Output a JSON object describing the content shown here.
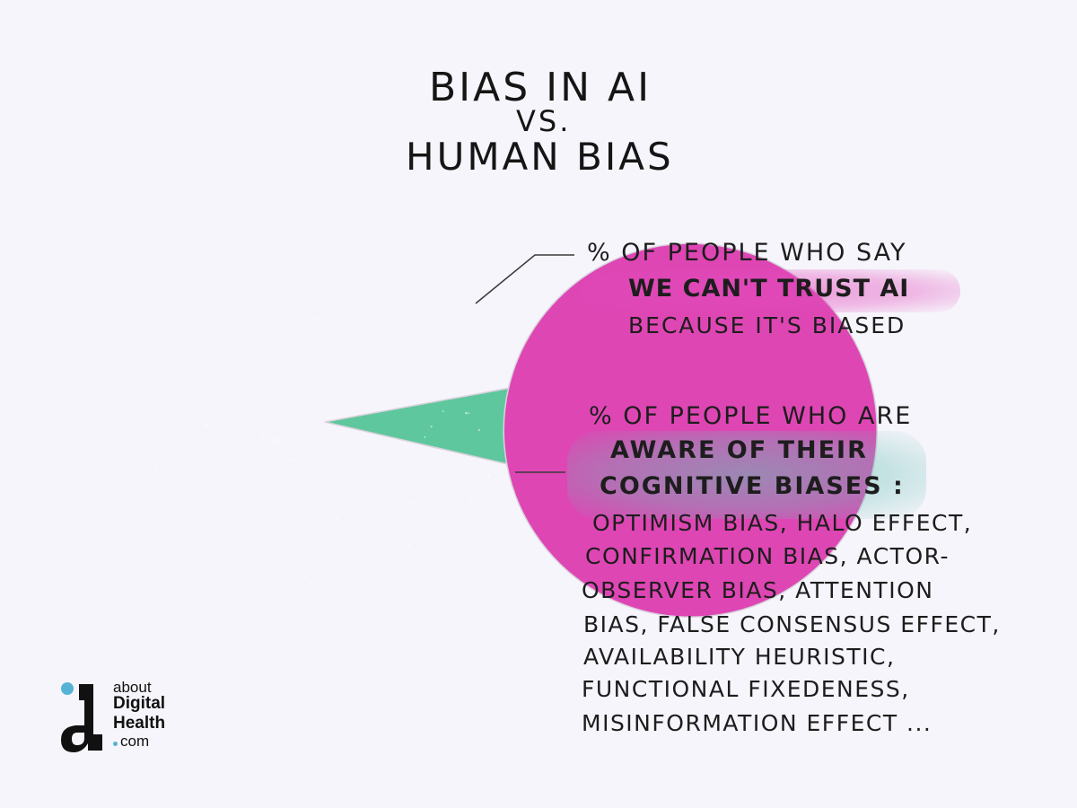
{
  "title": {
    "line1": "BIAS IN AI",
    "line2": "VS.",
    "line3": "HUMAN BIAS"
  },
  "chart_data": {
    "type": "pie",
    "slices": [
      {
        "label_lines": [
          "% OF PEOPLE WHO SAY",
          "WE CAN'T TRUST AI",
          "BECAUSE IT'S BIASED"
        ],
        "value": 93.5,
        "color": "#de46b4"
      },
      {
        "label_lines": [
          "% OF PEOPLE WHO ARE",
          "AWARE OF THEIR",
          "COGNITIVE BIASES :"
        ],
        "value": 6.5,
        "color": "#5ec79d"
      }
    ],
    "start_angle_deg": -13
  },
  "bias_list": [
    "OPTIMISM BIAS, HALO EFFECT,",
    "CONFIRMATION BIAS, ACTOR-",
    "OBSERVER BIAS, ATTENTION",
    "BIAS, FALSE CONSENSUS EFFECT,",
    "AVAILABILITY HEURISTIC,",
    "FUNCTIONAL FIXEDENESS,",
    "MISINFORMATION EFFECT ..."
  ],
  "logo": {
    "about": "about",
    "digital": "Digital",
    "health": "Health",
    "com": "com",
    "accent_color": "#57b3d6"
  }
}
